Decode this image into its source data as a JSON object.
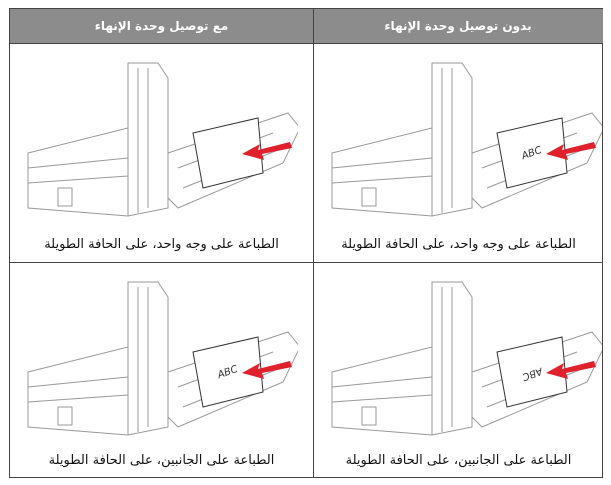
{
  "table": {
    "header": [
      "بدون توصيل وحدة الإنهاء",
      "مع توصيل وحدة الإنهاء"
    ],
    "rows": [
      {
        "cells": [
          {
            "caption": "الطباعة على وجه واحد، على الحافة الطويلة",
            "image_label": "ABC"
          },
          {
            "caption": "الطباعة على وجه واحد، على الحافة الطويلة"
          }
        ]
      },
      {
        "cells": [
          {
            "caption": "الطباعة على الجانبين، على الحافة الطويلة",
            "image_label": "ABC"
          },
          {
            "caption": "الطباعة على الجانبين، على الحافة الطويلة",
            "image_label": "ABC"
          }
        ]
      }
    ]
  }
}
